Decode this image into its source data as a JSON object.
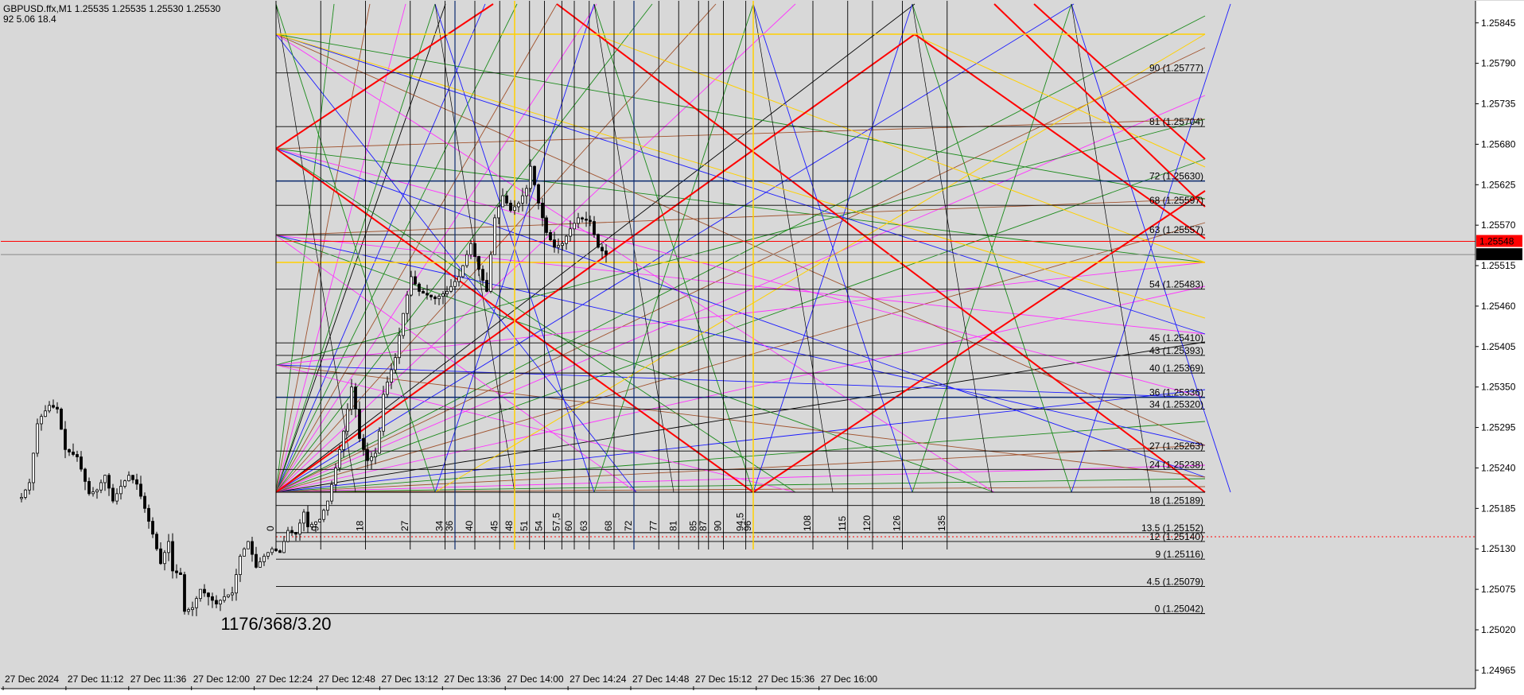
{
  "header": {
    "symbol_line": "GBPUSD.ffx,M1  1.25535 1.25535 1.25530 1.25530",
    "indicator_line": "92  5.06  18.4"
  },
  "note_text": "1176/368/3.20",
  "colors": {
    "background": "#d8d8d8",
    "bull_candle": "#ffffff",
    "bear_candle": "#000000",
    "red": "#ff0000",
    "gold": "#ffd000",
    "navy": "#0a2a6e",
    "blue": "#1a1aff",
    "magenta": "#ff33ff",
    "green": "#1a8a1a",
    "brown": "#a0522d",
    "black": "#000000"
  },
  "price_tags": {
    "bid": "1.25548",
    "last": "1.25530"
  },
  "chart_data": {
    "type": "candlestick",
    "title": "GBPUSD.ffx,M1",
    "y_range": [
      1.2494,
      1.25875
    ],
    "grid": false,
    "y_ticks": [
      "1.25845",
      "1.25790",
      "1.25735",
      "1.25680",
      "1.25625",
      "1.25570",
      "1.25515",
      "1.25460",
      "1.25405",
      "1.25350",
      "1.25295",
      "1.25240",
      "1.25185",
      "1.25130",
      "1.25075",
      "1.25020",
      "1.24965"
    ],
    "x_ticks": [
      "27 Dec 2024",
      "27 Dec 11:12",
      "27 Dec 11:36",
      "27 Dec 12:00",
      "27 Dec 12:24",
      "27 Dec 12:48",
      "27 Dec 13:12",
      "27 Dec 13:36",
      "27 Dec 14:00",
      "27 Dec 14:24",
      "27 Dec 14:48",
      "27 Dec 15:12",
      "27 Dec 15:36",
      "27 Dec 16:00"
    ],
    "level_labels": [
      {
        "label": "90 (1.25777)",
        "price": 1.25777
      },
      {
        "label": "81 (1.25704)",
        "price": 1.25704
      },
      {
        "label": "72 (1.25630)",
        "price": 1.2563
      },
      {
        "label": "68 (1.25597)",
        "price": 1.25597
      },
      {
        "label": "63 (1.25557)",
        "price": 1.25557
      },
      {
        "label": "54 (1.25483)",
        "price": 1.25483
      },
      {
        "label": "45 (1.25410)",
        "price": 1.2541
      },
      {
        "label": "43 (1.25393)",
        "price": 1.25393
      },
      {
        "label": "40 (1.25369)",
        "price": 1.25369
      },
      {
        "label": "36 (1.25336)",
        "price": 1.25336
      },
      {
        "label": "34 (1.25320)",
        "price": 1.2532
      },
      {
        "label": "27 (1.25263)",
        "price": 1.25263
      },
      {
        "label": "24 (1.25238)",
        "price": 1.25238
      },
      {
        "label": "18 (1.25189)",
        "price": 1.25189
      },
      {
        "label": "13.5 (1.25152)",
        "price": 1.25152
      },
      {
        "label": "12 (1.25140)",
        "price": 1.2514
      },
      {
        "label": "9 (1.25116)",
        "price": 1.25116
      },
      {
        "label": "4.5 (1.25079)",
        "price": 1.25079
      },
      {
        "label": "0 (1.25042)",
        "price": 1.25042
      }
    ],
    "time_counts": [
      {
        "label": "0",
        "bar": 0
      },
      {
        "label": "9",
        "bar": 9
      },
      {
        "label": "18",
        "bar": 18
      },
      {
        "label": "27",
        "bar": 27
      },
      {
        "label": "34",
        "bar": 34
      },
      {
        "label": "36",
        "bar": 36
      },
      {
        "label": "40",
        "bar": 40
      },
      {
        "label": "45",
        "bar": 45
      },
      {
        "label": "48",
        "bar": 48
      },
      {
        "label": "51",
        "bar": 51
      },
      {
        "label": "54",
        "bar": 54
      },
      {
        "label": "57,5",
        "bar": 57.5
      },
      {
        "label": "60",
        "bar": 60
      },
      {
        "label": "63",
        "bar": 63
      },
      {
        "label": "68",
        "bar": 68
      },
      {
        "label": "72",
        "bar": 72
      },
      {
        "label": "77",
        "bar": 77
      },
      {
        "label": "81",
        "bar": 81
      },
      {
        "label": "85",
        "bar": 85
      },
      {
        "label": "87",
        "bar": 87
      },
      {
        "label": "90",
        "bar": 90
      },
      {
        "label": "94,5",
        "bar": 94.5
      },
      {
        "label": "96",
        "bar": 96
      },
      {
        "label": "108",
        "bar": 108
      },
      {
        "label": "115",
        "bar": 115
      },
      {
        "label": "120",
        "bar": 120
      },
      {
        "label": "126",
        "bar": 126
      },
      {
        "label": "135",
        "bar": 135
      }
    ],
    "close_path": [
      [
        0,
        1.252
      ],
      [
        2,
        1.2522
      ],
      [
        4,
        1.253
      ],
      [
        5,
        1.2531
      ],
      [
        7,
        1.25325
      ],
      [
        9,
        1.2532
      ],
      [
        11,
        1.25265
      ],
      [
        14,
        1.25255
      ],
      [
        17,
        1.25205
      ],
      [
        19,
        1.2521
      ],
      [
        21,
        1.2523
      ],
      [
        23,
        1.25195
      ],
      [
        25,
        1.25215
      ],
      [
        27,
        1.2523
      ],
      [
        29,
        1.25218
      ],
      [
        31,
        1.25185
      ],
      [
        33,
        1.2515
      ],
      [
        35,
        1.2511
      ],
      [
        37,
        1.2514
      ],
      [
        38,
        1.251
      ],
      [
        40,
        1.25095
      ],
      [
        41,
        1.25045
      ],
      [
        43,
        1.2505
      ],
      [
        45,
        1.25075
      ],
      [
        49,
        1.25055
      ],
      [
        51,
        1.25065
      ],
      [
        53,
        1.2507
      ],
      [
        55,
        1.2512
      ],
      [
        57,
        1.2514
      ],
      [
        59,
        1.25105
      ],
      [
        61,
        1.2512
      ],
      [
        63,
        1.2513
      ],
      [
        65,
        1.25125
      ],
      [
        67,
        1.25155
      ],
      [
        69,
        1.2515
      ],
      [
        71,
        1.2518
      ],
      [
        72,
        1.2516
      ],
      [
        75,
        1.2517
      ],
      [
        77,
        1.25195
      ],
      [
        79,
        1.2524
      ],
      [
        81,
        1.2529
      ],
      [
        83,
        1.2535
      ],
      [
        84,
        1.2532
      ],
      [
        85,
        1.2528
      ],
      [
        87,
        1.2525
      ],
      [
        89,
        1.2526
      ],
      [
        90,
        1.2529
      ],
      [
        91,
        1.2534
      ],
      [
        94,
        1.2539
      ],
      [
        96,
        1.2545
      ],
      [
        98,
        1.255
      ],
      [
        100,
        1.2548
      ],
      [
        104,
        1.2547
      ],
      [
        107,
        1.2548
      ],
      [
        110,
        1.255
      ],
      [
        113,
        1.25545
      ],
      [
        115,
        1.2551
      ],
      [
        117,
        1.2548
      ],
      [
        119,
        1.2558
      ],
      [
        121,
        1.2561
      ],
      [
        123,
        1.2559
      ],
      [
        125,
        1.256
      ],
      [
        127,
        1.2562
      ],
      [
        128,
        1.2565
      ],
      [
        130,
        1.256
      ],
      [
        132,
        1.2556
      ],
      [
        134,
        1.2554
      ],
      [
        136,
        1.25545
      ],
      [
        138,
        1.25565
      ],
      [
        140,
        1.2558
      ],
      [
        143,
        1.25575
      ],
      [
        145,
        1.2554
      ],
      [
        147,
        1.2553
      ]
    ]
  }
}
